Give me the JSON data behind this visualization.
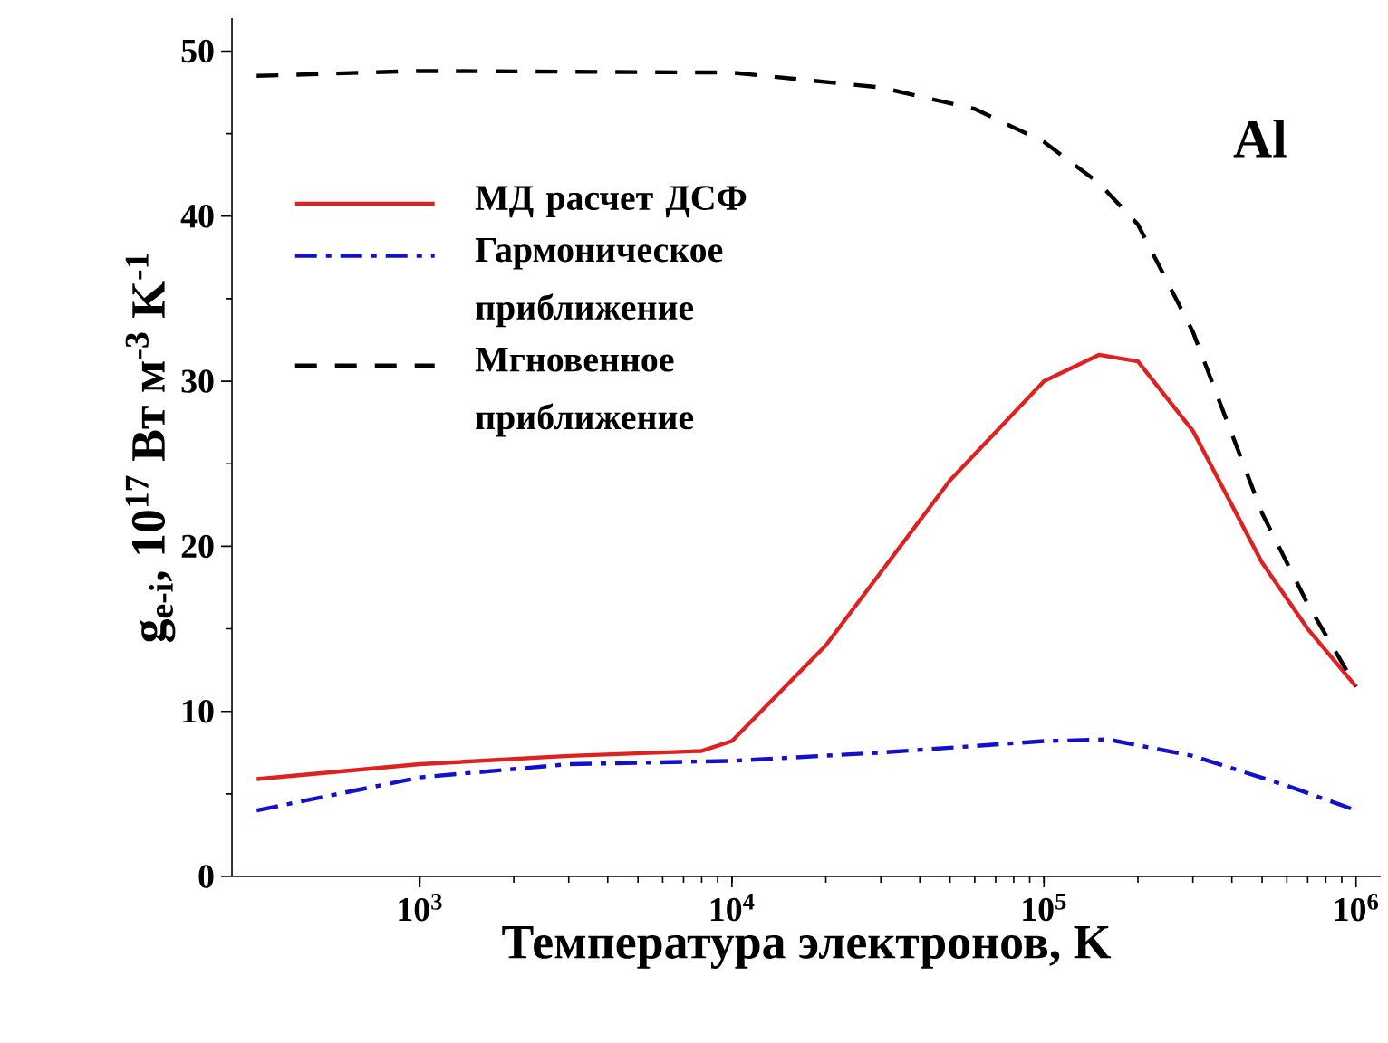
{
  "chart_data": {
    "type": "line",
    "xlabel": "Температура электронов, K",
    "ylabel": "g$_{e-i}$, 10$^{17}$ Вт м$^{-3}$ K$^{-1}$",
    "log": "x",
    "xlim": [
      250,
      1200000
    ],
    "ylim": [
      0,
      52
    ],
    "xticks": [
      {
        "value": 1000,
        "label": "10$^{3}$"
      },
      {
        "value": 10000,
        "label": "10$^{4}$"
      },
      {
        "value": 100000,
        "label": "10$^{5}$"
      },
      {
        "value": 1000000,
        "label": "10$^{6}$"
      }
    ],
    "yticks": [
      0,
      10,
      20,
      30,
      40,
      50
    ],
    "grid": false,
    "legend": "top left",
    "marker": "none",
    "annotations": [
      "Al"
    ],
    "series": [
      {
        "name": "МД расчет ДСФ",
        "color": "#dd2222",
        "line_style": "solid",
        "x": [
          300,
          1000,
          3000,
          8000,
          10000,
          20000,
          50000,
          100000,
          150000,
          200000,
          300000,
          500000,
          700000,
          1000000
        ],
        "values": [
          5.9,
          6.8,
          7.3,
          7.6,
          8.2,
          14,
          24,
          30,
          31.6,
          31.2,
          27,
          19,
          15,
          11.5
        ]
      },
      {
        "name": "Гармоническое приближение",
        "color": "#1111cc",
        "line_style": "dashdot",
        "x": [
          300,
          1000,
          3000,
          10000,
          30000,
          100000,
          160000,
          300000,
          600000,
          1000000
        ],
        "values": [
          4,
          6,
          6.8,
          7,
          7.5,
          8.2,
          8.3,
          7.3,
          5.5,
          4
        ]
      },
      {
        "name": "Мгновенное приближение",
        "color": "#000000",
        "line_style": "dashed",
        "x": [
          300,
          1000,
          10000,
          30000,
          60000,
          100000,
          150000,
          200000,
          300000,
          500000,
          700000,
          1000000
        ],
        "values": [
          48.5,
          48.8,
          48.7,
          47.8,
          46.5,
          44.5,
          42,
          39.5,
          33,
          22,
          16.5,
          11.5
        ]
      }
    ]
  }
}
